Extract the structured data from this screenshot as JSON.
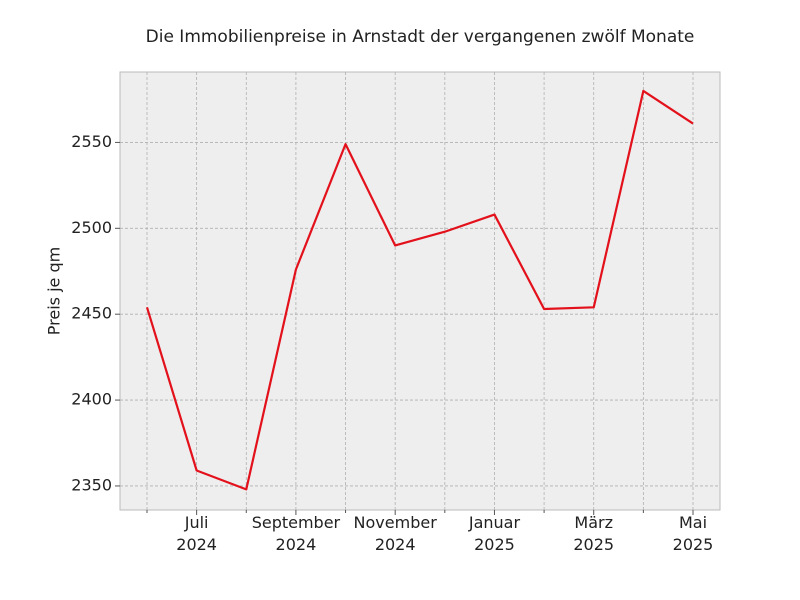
{
  "chart_data": {
    "type": "line",
    "title": "Die Immobilienpreise in Arnstadt der vergangenen zwölf Monate",
    "y_label": "Preis je qm",
    "categories": [
      null,
      "Juli\n2024",
      null,
      "September\n2024",
      null,
      "November\n2024",
      null,
      "Januar\n2025",
      null,
      "März\n2025",
      null,
      "Mai\n2025"
    ],
    "series": [
      {
        "name": "Preis je qm",
        "color": "#e3111b",
        "values": [
          2454,
          2359,
          2348,
          2476,
          2549,
          2490,
          2498,
          2508,
          2453,
          2454,
          2580,
          2561
        ]
      }
    ],
    "ylim": [
      2336,
      2591
    ],
    "yticks": [
      2350,
      2400,
      2450,
      2500,
      2550
    ],
    "grid": true
  }
}
